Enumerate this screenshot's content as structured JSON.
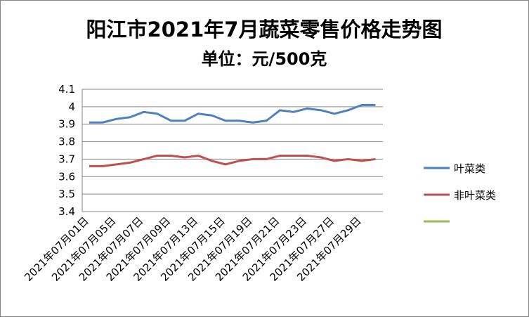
{
  "chart_data": {
    "type": "line",
    "title": "阳江市2021年7月蔬菜零售价格走势图",
    "subtitle": "单位：元/500克",
    "categories": [
      "2021年07月01日",
      null,
      "2021年07月05日",
      null,
      "2021年07月07日",
      null,
      "2021年07月09日",
      null,
      "2021年07月13日",
      null,
      "2021年07月15日",
      null,
      "2021年07月19日",
      null,
      "2021年07月21日",
      null,
      "2021年07月23日",
      null,
      "2021年07月27日",
      null,
      "2021年07月29日",
      null
    ],
    "series": [
      {
        "name": "叶菜类",
        "color": "#4f81bd",
        "values": [
          3.91,
          3.91,
          3.93,
          3.94,
          3.97,
          3.96,
          3.92,
          3.92,
          3.96,
          3.95,
          3.92,
          3.92,
          3.91,
          3.92,
          3.98,
          3.97,
          3.99,
          3.98,
          3.96,
          3.98,
          4.01,
          4.01
        ]
      },
      {
        "name": "非叶菜类",
        "color": "#c0504d",
        "values": [
          3.66,
          3.66,
          3.67,
          3.68,
          3.7,
          3.72,
          3.72,
          3.71,
          3.72,
          3.69,
          3.67,
          3.69,
          3.7,
          3.7,
          3.72,
          3.72,
          3.72,
          3.71,
          3.69,
          3.7,
          3.69,
          3.7
        ]
      }
    ],
    "ylim": [
      3.4,
      4.1
    ],
    "yticks": [
      3.4,
      3.5,
      3.6,
      3.7,
      3.8,
      3.9,
      4,
      4.1
    ],
    "grid": true,
    "legend": "right"
  }
}
